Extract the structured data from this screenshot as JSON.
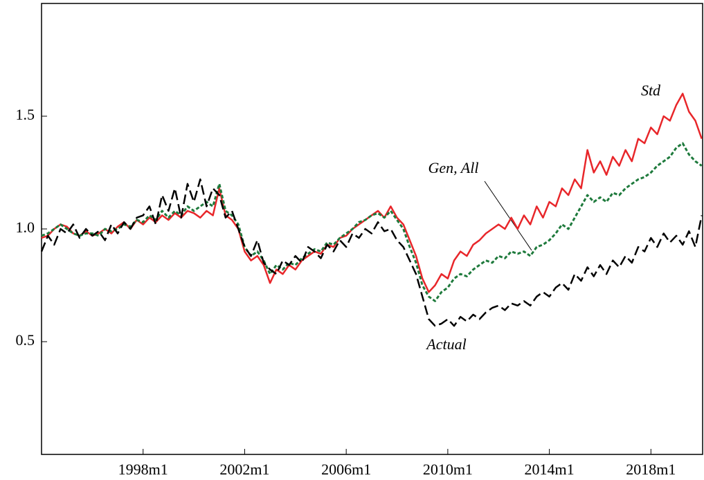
{
  "chart_data": {
    "type": "line",
    "x": [
      "1994m1",
      "1994m4",
      "1994m7",
      "1994m10",
      "1995m1",
      "1995m4",
      "1995m7",
      "1995m10",
      "1996m1",
      "1996m4",
      "1996m7",
      "1996m10",
      "1997m1",
      "1997m4",
      "1997m7",
      "1997m10",
      "1998m1",
      "1998m4",
      "1998m7",
      "1998m10",
      "1999m1",
      "1999m4",
      "1999m7",
      "1999m10",
      "2000m1",
      "2000m4",
      "2000m7",
      "2000m10",
      "2001m1",
      "2001m4",
      "2001m7",
      "2001m10",
      "2002m1",
      "2002m4",
      "2002m7",
      "2002m10",
      "2003m1",
      "2003m4",
      "2003m7",
      "2003m10",
      "2004m1",
      "2004m4",
      "2004m7",
      "2004m10",
      "2005m1",
      "2005m4",
      "2005m7",
      "2005m10",
      "2006m1",
      "2006m4",
      "2006m7",
      "2006m10",
      "2007m1",
      "2007m4",
      "2007m7",
      "2007m10",
      "2008m1",
      "2008m4",
      "2008m7",
      "2008m10",
      "2009m1",
      "2009m4",
      "2009m7",
      "2009m10",
      "2010m1",
      "2010m4",
      "2010m7",
      "2010m10",
      "2011m1",
      "2011m4",
      "2011m7",
      "2011m10",
      "2012m1",
      "2012m4",
      "2012m7",
      "2012m10",
      "2013m1",
      "2013m4",
      "2013m7",
      "2013m10",
      "2014m1",
      "2014m4",
      "2014m7",
      "2014m10",
      "2015m1",
      "2015m4",
      "2015m7",
      "2015m10",
      "2016m1",
      "2016m4",
      "2016m7",
      "2016m10",
      "2017m1",
      "2017m4",
      "2017m7",
      "2017m10",
      "2018m1",
      "2018m4",
      "2018m7",
      "2018m10",
      "2019m1",
      "2019m4",
      "2019m7",
      "2019m10",
      "2020m1"
    ],
    "series": [
      {
        "name": "Std",
        "color": "#e8262a",
        "values": [
          0.96,
          0.97,
          1.0,
          1.02,
          1.01,
          0.98,
          0.97,
          0.99,
          0.97,
          0.98,
          1.0,
          0.98,
          1.01,
          1.03,
          1.0,
          1.04,
          1.02,
          1.05,
          1.03,
          1.06,
          1.04,
          1.07,
          1.05,
          1.08,
          1.07,
          1.05,
          1.08,
          1.06,
          1.18,
          1.06,
          1.04,
          1.0,
          0.9,
          0.86,
          0.88,
          0.84,
          0.76,
          0.82,
          0.8,
          0.84,
          0.82,
          0.86,
          0.88,
          0.9,
          0.89,
          0.93,
          0.92,
          0.96,
          0.97,
          1.0,
          1.02,
          1.04,
          1.06,
          1.08,
          1.05,
          1.1,
          1.05,
          1.02,
          0.95,
          0.88,
          0.78,
          0.72,
          0.75,
          0.8,
          0.78,
          0.86,
          0.9,
          0.88,
          0.93,
          0.95,
          0.98,
          1.0,
          1.02,
          1.0,
          1.05,
          1.0,
          1.06,
          1.02,
          1.1,
          1.05,
          1.12,
          1.1,
          1.18,
          1.15,
          1.22,
          1.18,
          1.35,
          1.25,
          1.3,
          1.24,
          1.32,
          1.28,
          1.35,
          1.3,
          1.4,
          1.38,
          1.45,
          1.42,
          1.5,
          1.48,
          1.55,
          1.6,
          1.52,
          1.48,
          1.4
        ]
      },
      {
        "name": "Gen, All",
        "color": "#1e7a3c",
        "values": [
          0.97,
          0.98,
          1.0,
          1.02,
          1.0,
          0.98,
          0.97,
          0.98,
          0.98,
          0.97,
          1.0,
          0.99,
          1.0,
          1.02,
          1.01,
          1.04,
          1.03,
          1.06,
          1.04,
          1.08,
          1.05,
          1.08,
          1.06,
          1.1,
          1.08,
          1.1,
          1.12,
          1.1,
          1.2,
          1.08,
          1.06,
          1.02,
          0.92,
          0.88,
          0.9,
          0.86,
          0.8,
          0.84,
          0.82,
          0.85,
          0.84,
          0.87,
          0.89,
          0.91,
          0.9,
          0.94,
          0.93,
          0.96,
          0.98,
          1.0,
          1.03,
          1.04,
          1.06,
          1.07,
          1.05,
          1.08,
          1.04,
          1.0,
          0.92,
          0.85,
          0.75,
          0.7,
          0.68,
          0.72,
          0.74,
          0.78,
          0.8,
          0.79,
          0.82,
          0.84,
          0.86,
          0.85,
          0.88,
          0.87,
          0.9,
          0.89,
          0.9,
          0.88,
          0.92,
          0.93,
          0.95,
          0.98,
          1.02,
          1.0,
          1.05,
          1.1,
          1.15,
          1.12,
          1.14,
          1.12,
          1.16,
          1.15,
          1.18,
          1.2,
          1.22,
          1.23,
          1.25,
          1.28,
          1.3,
          1.32,
          1.36,
          1.38,
          1.33,
          1.3,
          1.28
        ]
      },
      {
        "name": "Actual",
        "color": "#000000",
        "values": [
          0.9,
          0.97,
          0.93,
          1.0,
          0.98,
          1.02,
          0.96,
          1.0,
          0.97,
          0.99,
          0.95,
          1.02,
          0.98,
          1.03,
          1.0,
          1.05,
          1.06,
          1.1,
          1.02,
          1.15,
          1.08,
          1.18,
          1.05,
          1.2,
          1.12,
          1.22,
          1.1,
          1.18,
          1.15,
          1.05,
          1.08,
          1.0,
          0.92,
          0.88,
          0.95,
          0.85,
          0.82,
          0.8,
          0.86,
          0.84,
          0.88,
          0.85,
          0.92,
          0.9,
          0.87,
          0.93,
          0.9,
          0.95,
          0.92,
          0.98,
          0.96,
          1.0,
          0.98,
          1.03,
          0.99,
          1.0,
          0.95,
          0.92,
          0.86,
          0.8,
          0.7,
          0.6,
          0.57,
          0.58,
          0.6,
          0.57,
          0.61,
          0.59,
          0.62,
          0.6,
          0.63,
          0.65,
          0.66,
          0.64,
          0.67,
          0.66,
          0.68,
          0.66,
          0.7,
          0.72,
          0.7,
          0.74,
          0.76,
          0.73,
          0.8,
          0.77,
          0.83,
          0.79,
          0.84,
          0.8,
          0.86,
          0.83,
          0.88,
          0.85,
          0.92,
          0.9,
          0.96,
          0.92,
          0.98,
          0.94,
          0.97,
          0.93,
          0.99,
          0.92,
          1.06
        ]
      }
    ],
    "ylim": [
      0,
      2.0
    ],
    "yticks": [
      0.5,
      {
        "value": 1,
        "label": "1.0"
      },
      1.5
    ],
    "xticks": [
      "1998m1",
      "2002m1",
      "2006m1",
      "2010m1",
      "2014m1",
      "2018m1"
    ]
  }
}
